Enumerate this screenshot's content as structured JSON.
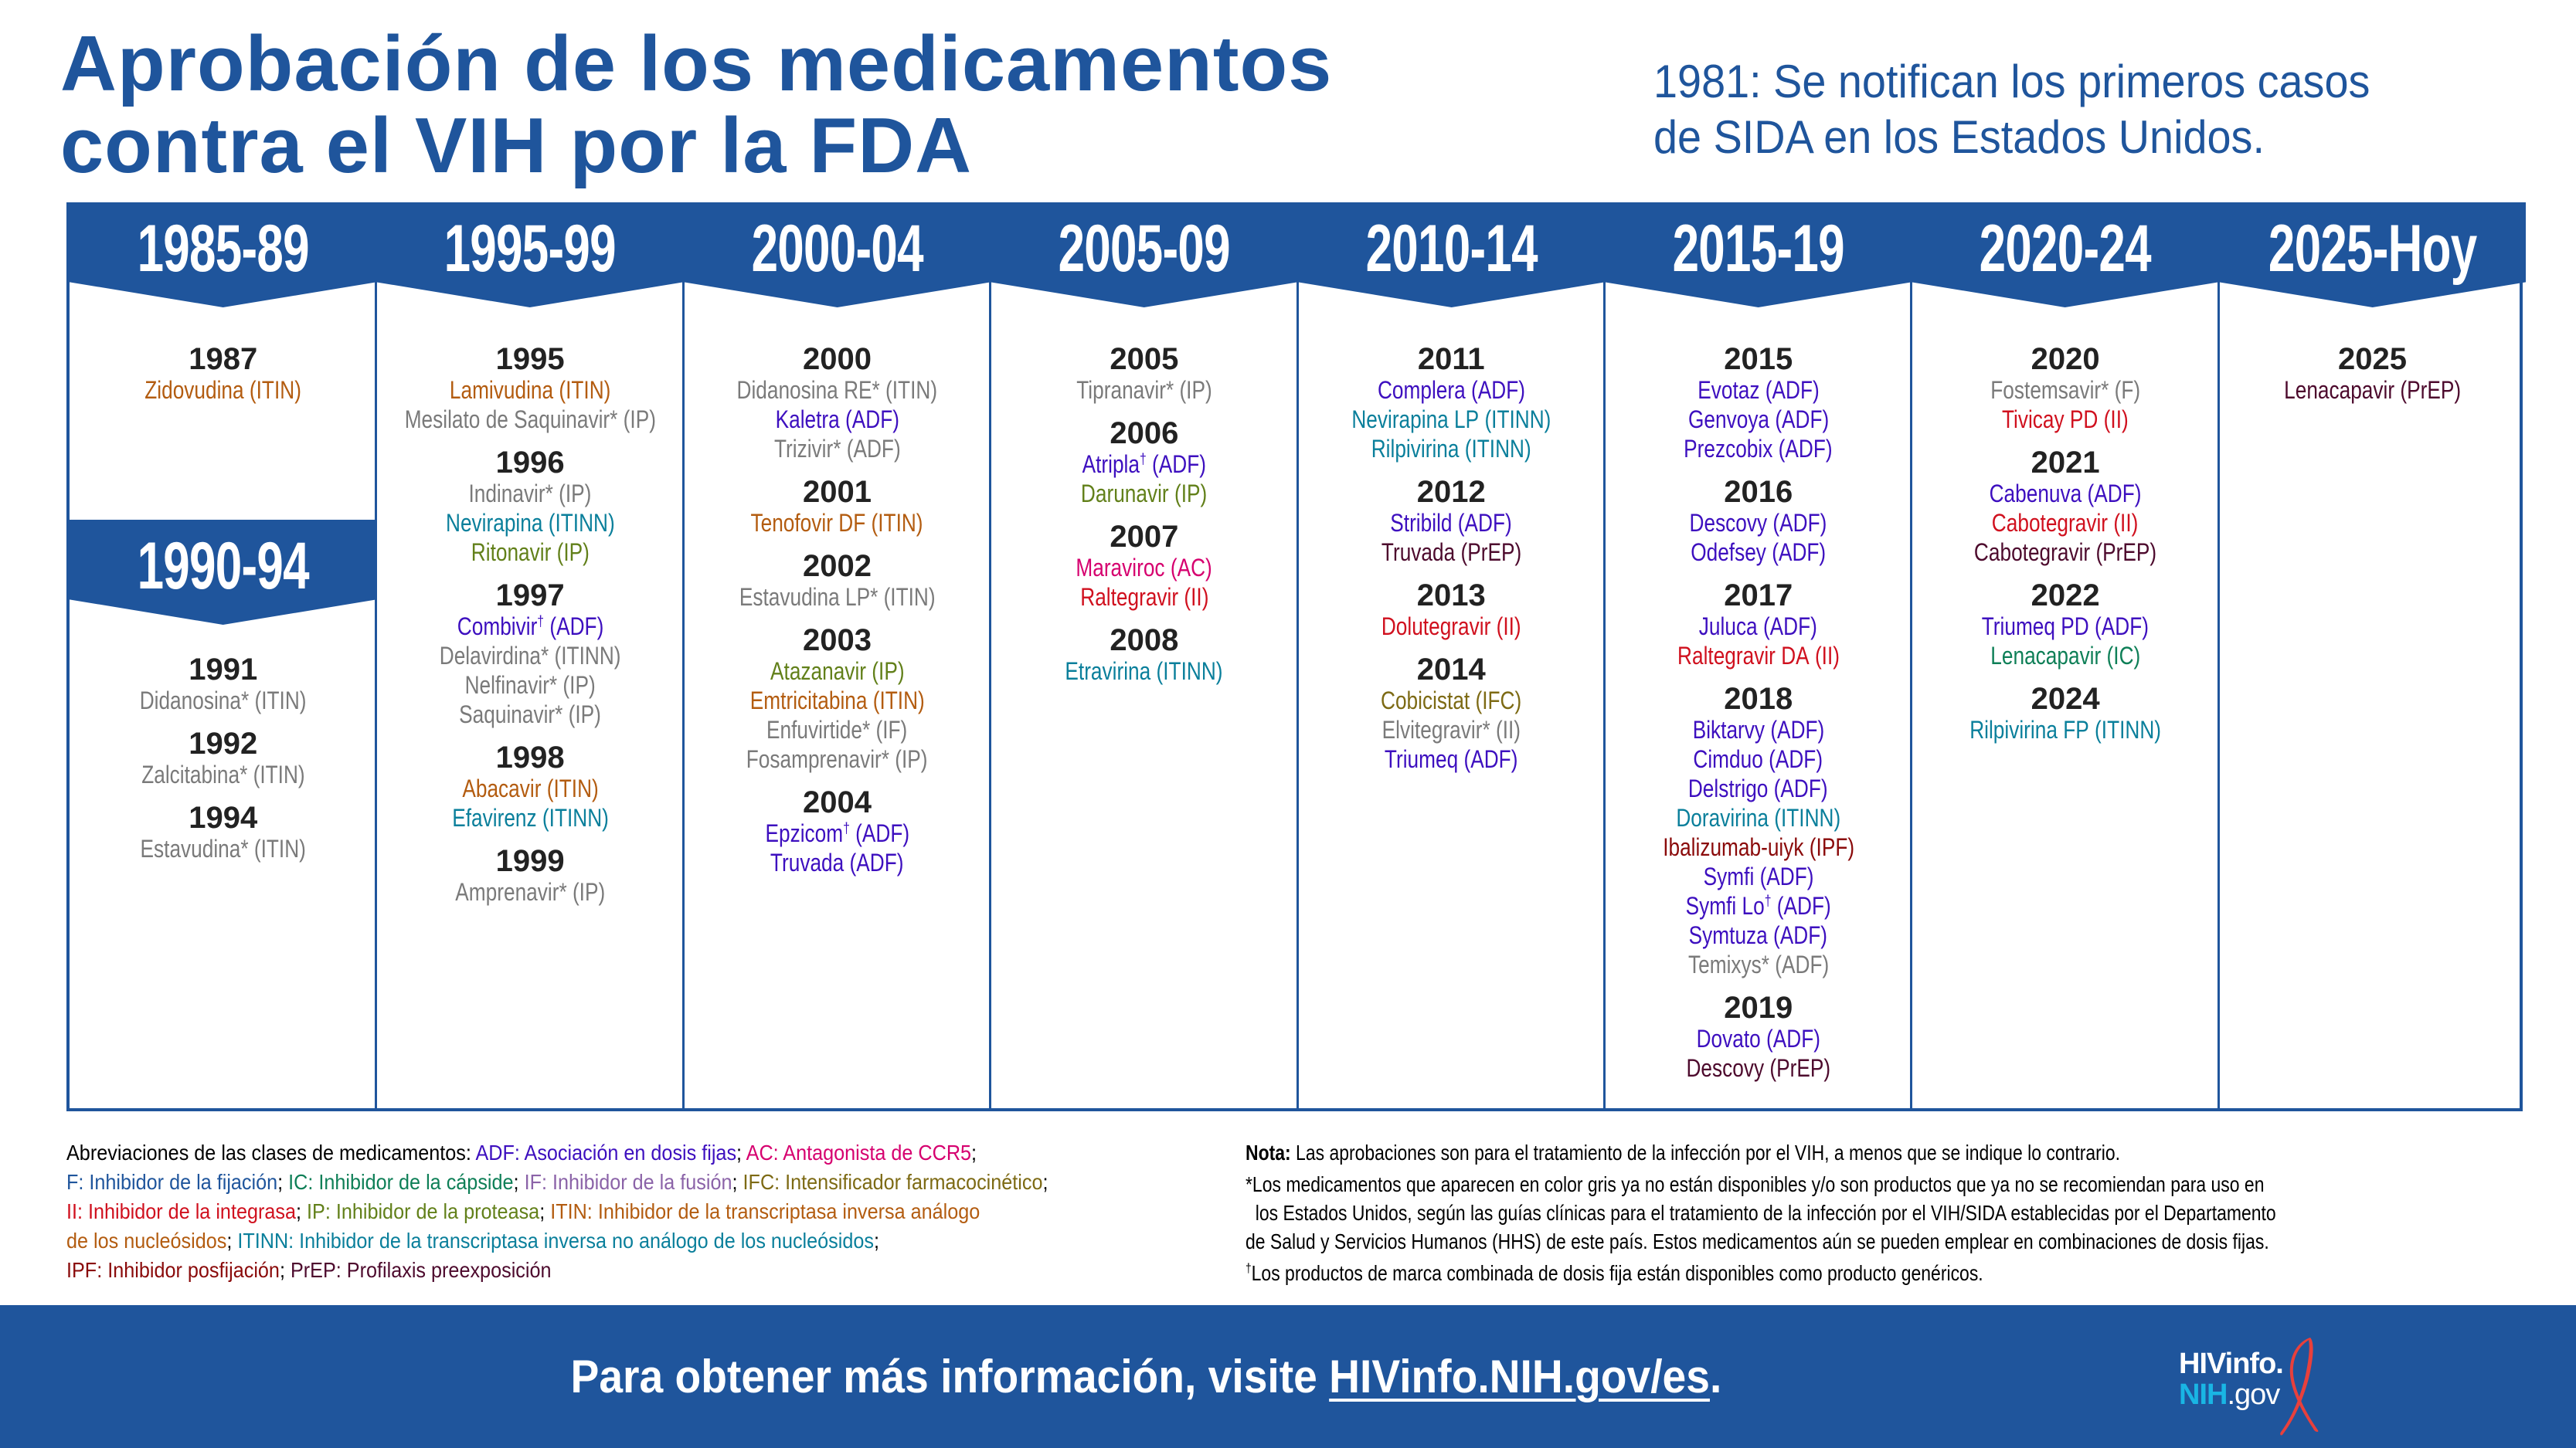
{
  "header": {
    "title_line1": "Aprobación de los medicamentos",
    "title_line2": "contra el VIH por la FDA",
    "note_line1": "1981: Se notifican los primeros casos",
    "note_line2": "de SIDA en los Estados Unidos."
  },
  "colors": {
    "brand_blue": "#1f559c",
    "ADF": "#3d0fbf",
    "AC": "#d6006f",
    "F": "#1f559c",
    "IC": "#0e7f57",
    "IF": "#8b63a8",
    "IFC": "#7d6a14",
    "II": "#d0101e",
    "IP": "#62801a",
    "ITIN": "#b35c10",
    "ITINN": "#0a7f9b",
    "IPF": "#8a0a0a",
    "PrEP": "#4d0a2d",
    "gray": "#7a7a7a",
    "year": "#222222"
  },
  "periods": [
    {
      "label": "1985-89",
      "years": [
        {
          "year": "1987",
          "drugs": [
            {
              "name": "Zidovudina",
              "cls": "(ITIN)",
              "color": "ITIN"
            }
          ]
        }
      ]
    },
    {
      "label": "1990-94",
      "years": [
        {
          "year": "1991",
          "drugs": [
            {
              "name": "Didanosina*",
              "cls": "(ITIN)",
              "color": "gray"
            }
          ]
        },
        {
          "year": "1992",
          "drugs": [
            {
              "name": "Zalcitabina*",
              "cls": "(ITIN)",
              "color": "gray"
            }
          ]
        },
        {
          "year": "1994",
          "drugs": [
            {
              "name": "Estavudina*",
              "cls": "(ITIN)",
              "color": "gray"
            }
          ]
        }
      ]
    },
    {
      "label": "1995-99",
      "years": [
        {
          "year": "1995",
          "drugs": [
            {
              "name": "Lamivudina",
              "cls": "(ITIN)",
              "color": "ITIN"
            },
            {
              "name": "Mesilato de Saquinavir*",
              "cls": "(IP)",
              "color": "gray"
            }
          ]
        },
        {
          "year": "1996",
          "drugs": [
            {
              "name": "Indinavir*",
              "cls": "(IP)",
              "color": "gray"
            },
            {
              "name": "Nevirapina",
              "cls": "(ITINN)",
              "color": "ITINN"
            },
            {
              "name": "Ritonavir",
              "cls": "(IP)",
              "color": "IP"
            }
          ]
        },
        {
          "year": "1997",
          "drugs": [
            {
              "name": "Combivir",
              "dagger": "†",
              "cls": "(ADF)",
              "color": "ADF"
            },
            {
              "name": "Delavirdina*",
              "cls": "(ITINN)",
              "color": "gray"
            },
            {
              "name": "Nelfinavir*",
              "cls": "(IP)",
              "color": "gray"
            },
            {
              "name": "Saquinavir*",
              "cls": "(IP)",
              "color": "gray"
            }
          ]
        },
        {
          "year": "1998",
          "drugs": [
            {
              "name": "Abacavir",
              "cls": "(ITIN)",
              "color": "ITIN"
            },
            {
              "name": "Efavirenz",
              "cls": "(ITINN)",
              "color": "ITINN"
            }
          ]
        },
        {
          "year": "1999",
          "drugs": [
            {
              "name": "Amprenavir*",
              "cls": "(IP)",
              "color": "gray"
            }
          ]
        }
      ]
    },
    {
      "label": "2000-04",
      "years": [
        {
          "year": "2000",
          "drugs": [
            {
              "name": "Didanosina RE*",
              "cls": "(ITIN)",
              "color": "gray"
            },
            {
              "name": "Kaletra",
              "cls": "(ADF)",
              "color": "ADF"
            },
            {
              "name": "Trizivir*",
              "cls": "(ADF)",
              "color": "gray"
            }
          ]
        },
        {
          "year": "2001",
          "drugs": [
            {
              "name": "Tenofovir DF",
              "cls": "(ITIN)",
              "color": "ITIN"
            }
          ]
        },
        {
          "year": "2002",
          "drugs": [
            {
              "name": "Estavudina LP*",
              "cls": "(ITIN)",
              "color": "gray"
            }
          ]
        },
        {
          "year": "2003",
          "drugs": [
            {
              "name": "Atazanavir",
              "cls": "(IP)",
              "color": "IP"
            },
            {
              "name": "Emtricitabina",
              "cls": "(ITIN)",
              "color": "ITIN"
            },
            {
              "name": "Enfuvirtide*",
              "cls": "(IF)",
              "color": "gray"
            },
            {
              "name": "Fosamprenavir*",
              "cls": "(IP)",
              "color": "gray"
            }
          ]
        },
        {
          "year": "2004",
          "drugs": [
            {
              "name": "Epzicom",
              "dagger": "†",
              "cls": "(ADF)",
              "color": "ADF"
            },
            {
              "name": "Truvada",
              "cls": "(ADF)",
              "color": "ADF"
            }
          ]
        }
      ]
    },
    {
      "label": "2005-09",
      "years": [
        {
          "year": "2005",
          "drugs": [
            {
              "name": "Tipranavir*",
              "cls": "(IP)",
              "color": "gray"
            }
          ]
        },
        {
          "year": "2006",
          "drugs": [
            {
              "name": "Atripla",
              "dagger": "†",
              "cls": "(ADF)",
              "color": "ADF"
            },
            {
              "name": "Darunavir",
              "cls": "(IP)",
              "color": "IP"
            }
          ]
        },
        {
          "year": "2007",
          "drugs": [
            {
              "name": "Maraviroc",
              "cls": "(AC)",
              "color": "AC"
            },
            {
              "name": "Raltegravir",
              "cls": "(II)",
              "color": "II"
            }
          ]
        },
        {
          "year": "2008",
          "drugs": [
            {
              "name": "Etravirina",
              "cls": "(ITINN)",
              "color": "ITINN"
            }
          ]
        }
      ]
    },
    {
      "label": "2010-14",
      "years": [
        {
          "year": "2011",
          "drugs": [
            {
              "name": "Complera",
              "cls": "(ADF)",
              "color": "ADF"
            },
            {
              "name": "Nevirapina LP",
              "cls": "(ITINN)",
              "color": "ITINN"
            },
            {
              "name": "Rilpivirina",
              "cls": "(ITINN)",
              "color": "ITINN"
            }
          ]
        },
        {
          "year": "2012",
          "drugs": [
            {
              "name": "Stribild",
              "cls": "(ADF)",
              "color": "ADF"
            },
            {
              "name": "Truvada",
              "cls": "(PrEP)",
              "color": "PrEP"
            }
          ]
        },
        {
          "year": "2013",
          "drugs": [
            {
              "name": "Dolutegravir",
              "cls": "(II)",
              "color": "II"
            }
          ]
        },
        {
          "year": "2014",
          "drugs": [
            {
              "name": "Cobicistat",
              "cls": "(IFC)",
              "color": "IFC"
            },
            {
              "name": "Elvitegravir*",
              "cls": "(II)",
              "color": "gray"
            },
            {
              "name": "Triumeq",
              "cls": "(ADF)",
              "color": "ADF"
            }
          ]
        }
      ]
    },
    {
      "label": "2015-19",
      "years": [
        {
          "year": "2015",
          "drugs": [
            {
              "name": "Evotaz",
              "cls": "(ADF)",
              "color": "ADF"
            },
            {
              "name": "Genvoya",
              "cls": "(ADF)",
              "color": "ADF"
            },
            {
              "name": "Prezcobix",
              "cls": "(ADF)",
              "color": "ADF"
            }
          ]
        },
        {
          "year": "2016",
          "drugs": [
            {
              "name": "Descovy",
              "cls": "(ADF)",
              "color": "ADF"
            },
            {
              "name": "Odefsey",
              "cls": "(ADF)",
              "color": "ADF"
            }
          ]
        },
        {
          "year": "2017",
          "drugs": [
            {
              "name": "Juluca",
              "cls": "(ADF)",
              "color": "ADF"
            },
            {
              "name": "Raltegravir DA",
              "cls": "(II)",
              "color": "II"
            }
          ]
        },
        {
          "year": "2018",
          "drugs": [
            {
              "name": "Biktarvy",
              "cls": "(ADF)",
              "color": "ADF"
            },
            {
              "name": "Cimduo",
              "cls": "(ADF)",
              "color": "ADF"
            },
            {
              "name": "Delstrigo",
              "cls": "(ADF)",
              "color": "ADF"
            },
            {
              "name": "Doravirina",
              "cls": "(ITINN)",
              "color": "ITINN"
            },
            {
              "name": "Ibalizumab-uiyk",
              "cls": "(IPF)",
              "color": "IPF"
            },
            {
              "name": "Symfi",
              "cls": "(ADF)",
              "color": "ADF"
            },
            {
              "name": "Symfi Lo",
              "dagger": "†",
              "cls": "(ADF)",
              "color": "ADF"
            },
            {
              "name": "Symtuza",
              "cls": "(ADF)",
              "color": "ADF"
            },
            {
              "name": "Temixys*",
              "cls": "(ADF)",
              "color": "gray"
            }
          ]
        },
        {
          "year": "2019",
          "drugs": [
            {
              "name": "Dovato",
              "cls": "(ADF)",
              "color": "ADF"
            },
            {
              "name": "Descovy",
              "cls": "(PrEP)",
              "color": "PrEP"
            }
          ]
        }
      ]
    },
    {
      "label": "2020-24",
      "years": [
        {
          "year": "2020",
          "drugs": [
            {
              "name": "Fostemsavir*",
              "cls": "(F)",
              "color": "gray"
            },
            {
              "name": "Tivicay PD",
              "cls": "(II)",
              "color": "II"
            }
          ]
        },
        {
          "year": "2021",
          "drugs": [
            {
              "name": "Cabenuva",
              "cls": "(ADF)",
              "color": "ADF"
            },
            {
              "name": "Cabotegravir",
              "cls": "(II)",
              "color": "II"
            },
            {
              "name": "Cabotegravir",
              "cls": "(PrEP)",
              "color": "PrEP"
            }
          ]
        },
        {
          "year": "2022",
          "drugs": [
            {
              "name": "Triumeq PD",
              "cls": "(ADF)",
              "color": "ADF"
            },
            {
              "name": "Lenacapavir",
              "cls": "(IC)",
              "color": "IC"
            }
          ]
        },
        {
          "year": "2024",
          "drugs": [
            {
              "name": "Rilpivirina FP",
              "cls": "(ITINN)",
              "color": "ITINN"
            }
          ]
        }
      ]
    },
    {
      "label": "2025-Hoy",
      "years": [
        {
          "year": "2025",
          "drugs": [
            {
              "name": "Lenacapavir",
              "cls": "(PrEP)",
              "color": "PrEP"
            }
          ]
        }
      ]
    }
  ],
  "legend": {
    "intro": "Abreviaciones de las clases de medicamentos: ",
    "items": [
      {
        "abbr": "ADF:",
        "text": " Asociación en dosis fijas",
        "color": "ADF",
        "sep": "; "
      },
      {
        "abbr": "AC:",
        "text": " Antagonista de CCR5",
        "color": "AC",
        "sep": ";",
        "br": true
      },
      {
        "abbr": "F:",
        "text": " Inhibidor de la fijación",
        "color": "F",
        "sep": "; "
      },
      {
        "abbr": "IC:",
        "text": " Inhibidor de la cápside",
        "color": "IC",
        "sep": "; "
      },
      {
        "abbr": "IF:",
        "text": " Inhibidor de la fusión",
        "color": "IF",
        "sep": "; "
      },
      {
        "abbr": "IFC:",
        "text": " Intensificador farmacocinético",
        "color": "IFC",
        "sep": ";",
        "br": true
      },
      {
        "abbr": "II:",
        "text": " Inhibidor de la integrasa",
        "color": "II",
        "sep": "; "
      },
      {
        "abbr": "IP:",
        "text": " Inhibidor de la proteasa",
        "color": "IP",
        "sep": "; "
      },
      {
        "abbr": "ITIN:",
        "text": " Inhibidor de la transcriptasa inversa análogo",
        "color": "ITIN",
        "sep": "",
        "br": true
      },
      {
        "abbr": "",
        "text": "de los nucleósidos",
        "color": "ITIN",
        "sep": "; "
      },
      {
        "abbr": "ITINN:",
        "text": " Inhibidor de la transcriptasa inversa no análogo de los nucleósidos",
        "color": "ITINN",
        "sep": ";",
        "br": true
      },
      {
        "abbr": "IPF:",
        "text": " Inhibidor posfijación",
        "color": "IPF",
        "sep": "; "
      },
      {
        "abbr": "PrEP:",
        "text": " Profilaxis preexposición",
        "color": "PrEP",
        "sep": ""
      }
    ]
  },
  "notes": {
    "nota_label": "Nota:",
    "nota_text": " Las aprobaciones son para el tratamiento de la infección por el VIH, a menos que se indique lo contrario.",
    "star_line1": "*Los medicamentos que aparecen en color gris ya no están disponibles y/o son productos que ya no se recomiendan para uso en",
    "star_line2": "  los Estados Unidos, según las guías clínicas para el tratamiento de la infección por el VIH/SIDA establecidas por el Departamento",
    "star_line3": "de Salud y Servicios Humanos (HHS) de este país. Estos medicamentos aún se pueden emplear en combinaciones de dosis fijas.",
    "dagger_mark": "†",
    "dagger_text": "Los productos de marca combinada de dosis fija están disponibles como producto genéricos."
  },
  "footer": {
    "text": "Para obtener más información, visite ",
    "link": "HIVinfo.NIH.gov/es",
    "period": ".",
    "logo_line1": "HIVinfo.",
    "logo_nih": "NIH",
    "logo_gov": ".gov"
  }
}
